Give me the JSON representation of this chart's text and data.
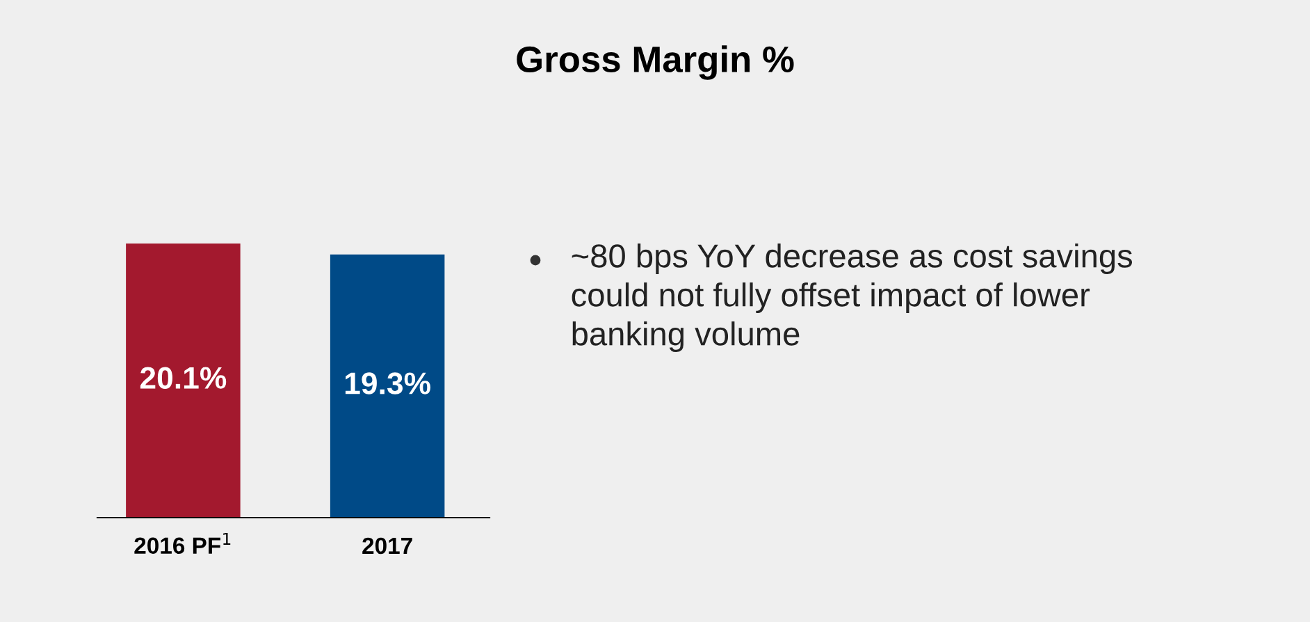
{
  "chart_data": {
    "type": "bar",
    "title": "Gross Margin %",
    "categories": [
      "2016 PF$^{1}$",
      "2017"
    ],
    "values": [
      20.1,
      19.3
    ],
    "colors": [
      "#a3192e",
      "#004a87"
    ],
    "value_labels": [
      "20.1%",
      "19.3%"
    ],
    "annotations": [
      "~80 bps YoY decrease as cost savings could not fully offset impact of lower banking volume"
    ],
    "grid": false,
    "legend": false
  }
}
